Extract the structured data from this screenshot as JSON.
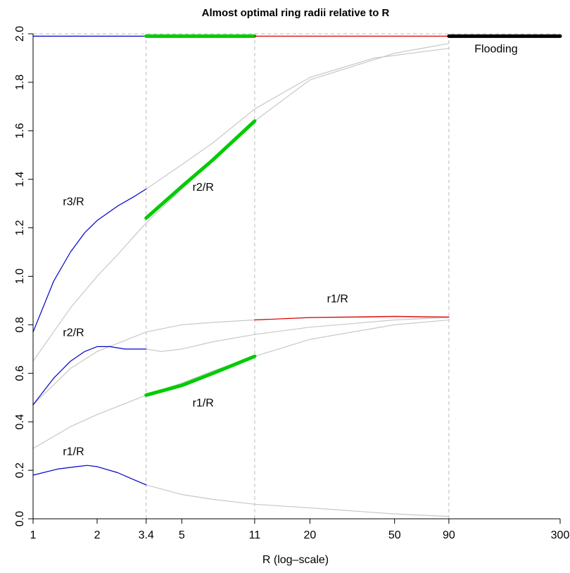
{
  "chart_data": {
    "type": "line",
    "title": "Almost optimal ring radii relative to R",
    "xlabel": "R (log–scale)",
    "ylabel": "",
    "x_scale": "log",
    "xlim": [
      1,
      300
    ],
    "ylim": [
      0,
      2
    ],
    "x_ticks": [
      1,
      2,
      3.4,
      5,
      11,
      20,
      50,
      90,
      300
    ],
    "x_tick_labels": [
      "1",
      "2",
      "3.4",
      "5",
      "11",
      "20",
      "50",
      "90",
      "300"
    ],
    "y_ticks": [
      0,
      0.2,
      0.4,
      0.6,
      0.8,
      1.0,
      1.2,
      1.4,
      1.6,
      1.8,
      2.0
    ],
    "y_tick_labels": [
      "0.0",
      "0.2",
      "0.4",
      "0.6",
      "0.8",
      "1.0",
      "1.2",
      "1.4",
      "1.6",
      "1.8",
      "2.0"
    ],
    "grid": false,
    "vertical_guides": [
      3.4,
      11,
      90
    ],
    "horizontal_guide": 2.0,
    "colors": {
      "gray": "#c8c8c8",
      "blue": "#0000cc",
      "green": "#00cc00",
      "red": "#dd0000",
      "black": "#000000",
      "guide": "#bbbbbb"
    },
    "series": [
      {
        "color": "gray",
        "width": 1.2,
        "x": [
          1,
          1.5,
          2,
          2.5,
          3.4,
          5,
          7,
          11,
          20,
          50,
          90
        ],
        "y": [
          0.65,
          0.87,
          1.0,
          1.09,
          1.22,
          1.36,
          1.48,
          1.64,
          1.81,
          1.92,
          1.96
        ]
      },
      {
        "color": "gray",
        "width": 1.2,
        "x": [
          3.4,
          5,
          7,
          11,
          20,
          40,
          90
        ],
        "y": [
          1.36,
          1.46,
          1.55,
          1.69,
          1.82,
          1.9,
          1.94
        ]
      },
      {
        "color": "gray",
        "width": 1.2,
        "x": [
          1,
          1.5,
          2,
          3.4,
          5,
          7,
          11,
          20,
          50,
          90
        ],
        "y": [
          0.47,
          0.62,
          0.69,
          0.77,
          0.8,
          0.81,
          0.82,
          0.83,
          0.83,
          0.83
        ]
      },
      {
        "color": "gray",
        "width": 1.2,
        "x": [
          3.4,
          4,
          5,
          7,
          11,
          20,
          50,
          90
        ],
        "y": [
          0.7,
          0.69,
          0.7,
          0.73,
          0.76,
          0.79,
          0.82,
          0.83
        ]
      },
      {
        "color": "gray",
        "width": 1.2,
        "x": [
          1,
          1.5,
          2,
          3.4,
          5,
          7,
          11,
          20,
          50,
          90
        ],
        "y": [
          0.29,
          0.38,
          0.43,
          0.51,
          0.56,
          0.61,
          0.67,
          0.74,
          0.8,
          0.82
        ]
      },
      {
        "color": "gray",
        "width": 1.2,
        "x": [
          3.4,
          5,
          7,
          11,
          20,
          50,
          90
        ],
        "y": [
          0.14,
          0.1,
          0.08,
          0.06,
          0.045,
          0.02,
          0.01
        ]
      },
      {
        "color": "blue",
        "width": 1.2,
        "x": [
          1,
          1.25,
          1.5,
          1.75,
          2,
          2.5,
          3,
          3.4
        ],
        "y": [
          0.77,
          0.98,
          1.1,
          1.18,
          1.23,
          1.29,
          1.33,
          1.36
        ]
      },
      {
        "color": "blue",
        "width": 1.2,
        "x": [
          1,
          1.25,
          1.5,
          1.75,
          2,
          2.3,
          2.7,
          3,
          3.4
        ],
        "y": [
          0.47,
          0.58,
          0.65,
          0.69,
          0.71,
          0.71,
          0.7,
          0.7,
          0.7
        ]
      },
      {
        "color": "blue",
        "width": 1.2,
        "x": [
          1,
          1.3,
          1.6,
          1.8,
          2,
          2.5,
          3,
          3.4
        ],
        "y": [
          0.18,
          0.205,
          0.215,
          0.22,
          0.215,
          0.19,
          0.16,
          0.14
        ]
      },
      {
        "color": "blue",
        "width": 1.2,
        "x": [
          1,
          3.4
        ],
        "y": [
          1.99,
          1.99
        ]
      },
      {
        "color": "green",
        "width": 5,
        "x": [
          3.4,
          5,
          7,
          11
        ],
        "y": [
          1.24,
          1.37,
          1.48,
          1.64
        ]
      },
      {
        "color": "green",
        "width": 5,
        "x": [
          3.4,
          5,
          7,
          11
        ],
        "y": [
          0.51,
          0.55,
          0.6,
          0.67
        ]
      },
      {
        "color": "green",
        "width": 5,
        "x": [
          3.4,
          11
        ],
        "y": [
          1.99,
          1.99
        ]
      },
      {
        "color": "red",
        "width": 1.2,
        "x": [
          11,
          20,
          50,
          90
        ],
        "y": [
          0.82,
          0.83,
          0.835,
          0.832
        ]
      },
      {
        "color": "red",
        "width": 1.2,
        "x": [
          11,
          90
        ],
        "y": [
          1.99,
          1.99
        ]
      },
      {
        "color": "black",
        "width": 5,
        "x": [
          90,
          300
        ],
        "y": [
          1.99,
          1.99
        ]
      }
    ],
    "annotations": [
      {
        "text": "r3/R",
        "x": 1.55,
        "y": 1.31
      },
      {
        "text": "r2/R",
        "x": 6.3,
        "y": 1.37
      },
      {
        "text": "r2/R",
        "x": 1.55,
        "y": 0.77
      },
      {
        "text": "r1/R",
        "x": 27,
        "y": 0.91
      },
      {
        "text": "r1/R",
        "x": 6.3,
        "y": 0.48
      },
      {
        "text": "r1/R",
        "x": 1.55,
        "y": 0.28
      },
      {
        "text": "Flooding",
        "x": 150,
        "y": 1.94
      }
    ]
  }
}
